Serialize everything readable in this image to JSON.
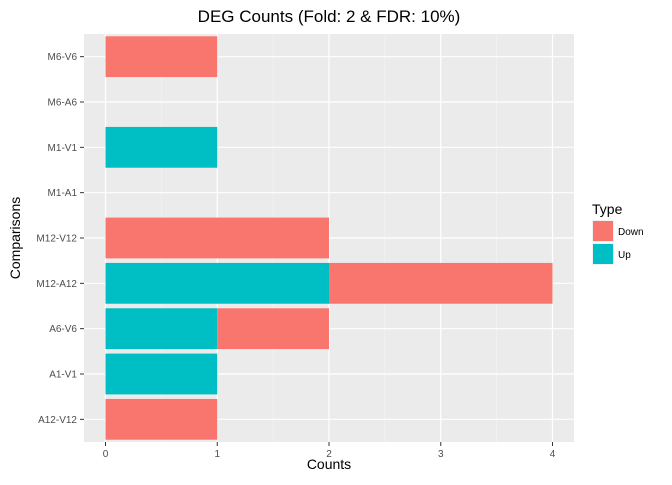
{
  "chart_data": {
    "type": "bar",
    "orientation": "horizontal",
    "stacked": true,
    "title": "DEG Counts (Fold: 2 & FDR: 10%)",
    "xlabel": "Counts",
    "ylabel": "Comparisons",
    "xlim": [
      0,
      4.2
    ],
    "xticks": [
      "0",
      "1",
      "2",
      "3",
      "4"
    ],
    "categories": [
      "M6-V6",
      "M6-A6",
      "M1-V1",
      "M1-A1",
      "M12-V12",
      "M12-A12",
      "A6-V6",
      "A1-V1",
      "A12-V12"
    ],
    "series": [
      {
        "name": "Up",
        "color": "#00BFC4",
        "values": [
          0,
          0,
          1,
          0,
          0,
          2,
          1,
          1,
          0
        ]
      },
      {
        "name": "Down",
        "color": "#F8766D",
        "values": [
          1,
          0,
          0,
          0,
          2,
          2,
          1,
          0,
          1
        ]
      }
    ],
    "grid": true,
    "panel_background": "#EBEBEB",
    "legend": {
      "title": "Type",
      "placement": "right",
      "entries": [
        {
          "label": "Down",
          "color": "#F8766D"
        },
        {
          "label": "Up",
          "color": "#00BFC4"
        }
      ]
    }
  }
}
